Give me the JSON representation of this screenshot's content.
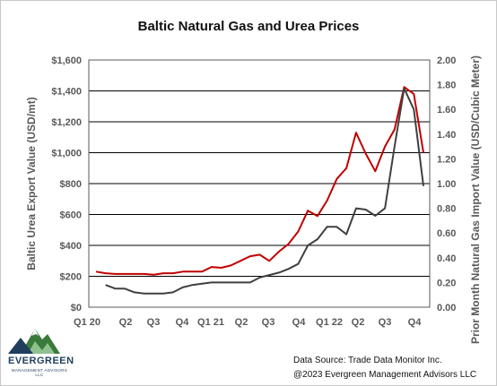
{
  "chart_data": {
    "type": "line",
    "title": "Baltic Natural Gas and Urea Prices",
    "ylabel_left": "Baltic Urea Export Value (USD/mt)",
    "ylabel_right": "Prior Month Natural Gas Import Value (USD/Cubic Meter)",
    "ylim_left": [
      0,
      1600
    ],
    "ylim_right": [
      0,
      2.0
    ],
    "yticks_left": [
      "$0",
      "$200",
      "$400",
      "$600",
      "$800",
      "$1,000",
      "$1,200",
      "$1,400",
      "$1,600"
    ],
    "yticks_right": [
      "0.00",
      "0.20",
      "0.40",
      "0.60",
      "0.80",
      "1.00",
      "1.20",
      "1.40",
      "1.60",
      "1.80",
      "2.00"
    ],
    "x_tick_labels": [
      "Q1 20",
      "Q2",
      "Q3",
      "Q4",
      "Q1 21",
      "Q2",
      "Q3",
      "Q4",
      "Q1 22",
      "Q2",
      "Q3",
      "Q4"
    ],
    "grid": "horizontal",
    "series": [
      {
        "axis": "left",
        "color": "#c00000",
        "values": [
          230,
          220,
          215,
          215,
          215,
          215,
          210,
          220,
          220,
          230,
          230,
          230,
          260,
          255,
          270,
          300,
          330,
          340,
          300,
          360,
          410,
          490,
          625,
          590,
          690,
          830,
          900,
          1130,
          995,
          880,
          1040,
          1150,
          1425,
          1380,
          1000
        ]
      },
      {
        "axis": "right",
        "color": "#404040",
        "values": [
          null,
          0.18,
          0.15,
          0.15,
          0.12,
          0.11,
          0.11,
          0.11,
          0.12,
          0.16,
          0.18,
          0.19,
          0.2,
          0.2,
          0.2,
          0.2,
          0.2,
          0.24,
          0.26,
          0.28,
          0.31,
          0.35,
          0.5,
          0.55,
          0.65,
          0.65,
          0.59,
          0.8,
          0.79,
          0.74,
          0.8,
          1.3,
          1.77,
          1.6,
          0.98
        ]
      }
    ]
  },
  "source": {
    "line1": "Data Source: Trade Data Monitor Inc.",
    "line2": "@2023 Evergreen Management Advisors LLC"
  },
  "logo": {
    "name": "EVERGREEN",
    "sub": "MANAGEMENT ADVISORS LLC",
    "colors": [
      "#1f3d5c",
      "#3a7a3a",
      "#8fc18f",
      "#ffffff"
    ]
  }
}
